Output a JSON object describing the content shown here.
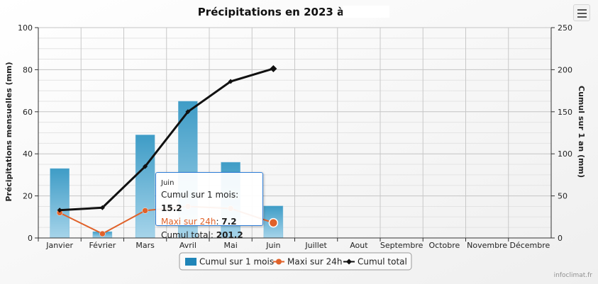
{
  "chart_data": {
    "type": "bar",
    "title": "Précipitations en 2023 à",
    "categories": [
      "Janvier",
      "Février",
      "Mars",
      "Avril",
      "Mai",
      "Juin",
      "Juillet",
      "Aout",
      "Septembre",
      "Octobre",
      "Novembre",
      "Décembre"
    ],
    "ylabel": "Précipitations mensuelles (mm)",
    "y2label": "Cumul sur 1 an (mm)",
    "ylim": [
      0,
      100
    ],
    "y2lim": [
      0,
      250
    ],
    "yticks": [
      0,
      20,
      40,
      60,
      80,
      100
    ],
    "y2ticks": [
      0,
      50,
      100,
      150,
      200,
      250
    ],
    "grid": true,
    "legend_position": "bottom",
    "series": [
      {
        "name": "Cumul sur 1 mois",
        "type": "bar",
        "axis": "left",
        "color": "#4aa3c9",
        "values": [
          33,
          3,
          49,
          65,
          36,
          15.2,
          null,
          null,
          null,
          null,
          null,
          null
        ]
      },
      {
        "name": "Maxi sur 24h",
        "type": "line",
        "axis": "left",
        "color": "#e0622a",
        "values": [
          12,
          2,
          13,
          15,
          14,
          7.2,
          null,
          null,
          null,
          null,
          null,
          null
        ]
      },
      {
        "name": "Cumul total",
        "type": "line",
        "axis": "right",
        "color": "#111111",
        "values": [
          33,
          36,
          85,
          150,
          186,
          201.2,
          null,
          null,
          null,
          null,
          null,
          null
        ]
      }
    ],
    "tooltip": {
      "header": "Juin",
      "rows": [
        {
          "label": "Cumul sur 1 mois",
          "value": "15.2",
          "color": "#222222"
        },
        {
          "label": "Maxi sur 24h",
          "value": "7.2",
          "color": "#e0622a"
        },
        {
          "label": "Cumul total",
          "value": "201.2",
          "color": "#222222"
        }
      ]
    }
  },
  "credit": "infoclimat.fr",
  "icons": {
    "menu": "hamburger-menu-icon"
  }
}
